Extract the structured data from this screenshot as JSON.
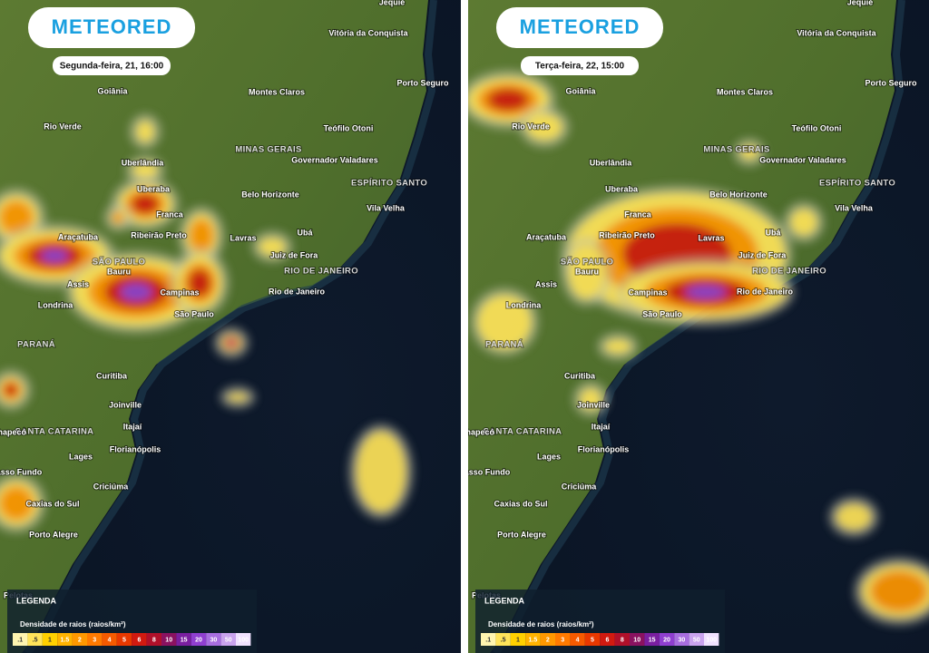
{
  "panels": [
    {
      "logo": "METEORED",
      "date": "Segunda-feira, 21, 16:00"
    },
    {
      "logo": "METEORED",
      "date": "Terça-feira, 22, 15:00"
    }
  ],
  "map": {
    "cities": [
      "Jequié",
      "Vitória da Conquista",
      "Porto Seguro",
      "Goiânia",
      "Montes Claros",
      "Rio Verde",
      "Teófilo Otoni",
      "Uberlândia",
      "Governador Valadares",
      "Uberaba",
      "Belo Horizonte",
      "Franca",
      "Vila Velha",
      "Araçatuba",
      "Ribeirão Preto",
      "Lavras",
      "Ubá",
      "Juiz de Fora",
      "Bauru",
      "Assis",
      "Campinas",
      "Rio de Janeiro",
      "Londrina",
      "São Paulo",
      "Curitiba",
      "Joinville",
      "Itajaí",
      "Chapecó",
      "Florianópolis",
      "Lages",
      "Passo Fundo",
      "Criciúma",
      "Caxias do Sul",
      "Porto Alegre",
      "Pelotas"
    ],
    "states": [
      "MINAS GERAIS",
      "ESPÍRITO SANTO",
      "SÃO PAULO",
      "RIO DE JANEIRO",
      "PARANÁ",
      "SANTA CATARINA"
    ]
  },
  "legend": {
    "title": "LEGENDA",
    "subtitle": "Densidade de raios (raios/km²)",
    "scale": [
      ".1",
      ".5",
      "1",
      "1.5",
      "2",
      "3",
      "4",
      "5",
      "6",
      "8",
      "10",
      "15",
      "20",
      "30",
      "50",
      "100"
    ]
  }
}
